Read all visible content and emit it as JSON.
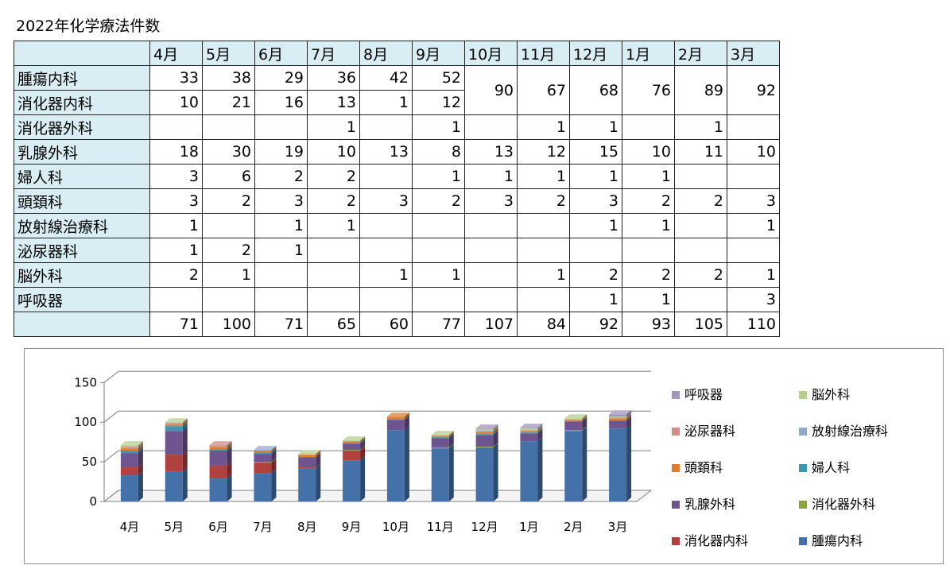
{
  "title": "2022年化学療法件数",
  "table": {
    "months": [
      "4月",
      "5月",
      "6月",
      "7月",
      "8月",
      "9月",
      "10月",
      "11月",
      "12月",
      "1月",
      "2月",
      "3月"
    ],
    "rows": [
      {
        "name": "腫瘍内科",
        "values": [
          "33",
          "38",
          "29",
          "36",
          "42",
          "52",
          "",
          "",
          "",
          "",
          "",
          ""
        ]
      },
      {
        "name": "消化器内科",
        "values": [
          "10",
          "21",
          "16",
          "13",
          "1",
          "12",
          "",
          "",
          "",
          "",
          "",
          ""
        ]
      },
      {
        "name": "消化器外科",
        "values": [
          "",
          "",
          "",
          "1",
          "",
          "1",
          "",
          "1",
          "1",
          "",
          "1",
          ""
        ]
      },
      {
        "name": "乳腺外科",
        "values": [
          "18",
          "30",
          "19",
          "10",
          "13",
          "8",
          "13",
          "12",
          "15",
          "10",
          "11",
          "10"
        ]
      },
      {
        "name": "婦人科",
        "values": [
          "3",
          "6",
          "2",
          "2",
          "",
          "1",
          "1",
          "1",
          "1",
          "1",
          "",
          ""
        ]
      },
      {
        "name": "頭頚科",
        "values": [
          "3",
          "2",
          "3",
          "2",
          "3",
          "2",
          "3",
          "2",
          "3",
          "2",
          "2",
          "3"
        ]
      },
      {
        "name": "放射線治療科",
        "values": [
          "1",
          "",
          "1",
          "1",
          "",
          "",
          "",
          "",
          "1",
          "1",
          "",
          "1"
        ]
      },
      {
        "name": "泌尿器科",
        "values": [
          "1",
          "2",
          "1",
          "",
          "",
          "",
          "",
          "",
          "",
          "",
          "",
          ""
        ]
      },
      {
        "name": "脳外科",
        "values": [
          "2",
          "1",
          "",
          "",
          "1",
          "1",
          "",
          "1",
          "2",
          "2",
          "2",
          "1"
        ]
      },
      {
        "name": "呼吸器",
        "values": [
          "",
          "",
          "",
          "",
          "",
          "",
          "",
          "",
          "1",
          "1",
          "",
          "3"
        ]
      }
    ],
    "merged": [
      "90",
      "67",
      "68",
      "76",
      "89",
      "92"
    ],
    "totals": [
      "71",
      "100",
      "71",
      "65",
      "60",
      "77",
      "107",
      "84",
      "92",
      "93",
      "105",
      "110"
    ]
  },
  "chart_data": {
    "type": "bar",
    "stacked": true,
    "categories": [
      "4月",
      "5月",
      "6月",
      "7月",
      "8月",
      "9月",
      "10月",
      "11月",
      "12月",
      "1月",
      "2月",
      "3月"
    ],
    "ylim": [
      0,
      150
    ],
    "yticks": [
      0,
      50,
      100,
      150
    ],
    "legend_position": "right",
    "series": [
      {
        "name": "腫瘍内科",
        "color": "#4472a8",
        "values": [
          33,
          38,
          29,
          36,
          42,
          52,
          90,
          67,
          68,
          76,
          89,
          92
        ]
      },
      {
        "name": "消化器内科",
        "color": "#b0413e",
        "values": [
          10,
          21,
          16,
          13,
          1,
          12,
          0,
          0,
          0,
          0,
          0,
          0
        ]
      },
      {
        "name": "消化器外科",
        "color": "#87a43e",
        "values": [
          0,
          0,
          0,
          1,
          0,
          1,
          0,
          1,
          1,
          0,
          1,
          0
        ]
      },
      {
        "name": "乳腺外科",
        "color": "#6f558f",
        "values": [
          18,
          30,
          19,
          10,
          13,
          8,
          13,
          12,
          15,
          10,
          11,
          10
        ]
      },
      {
        "name": "婦人科",
        "color": "#3a98b0",
        "values": [
          3,
          6,
          2,
          2,
          0,
          1,
          1,
          1,
          1,
          1,
          0,
          0
        ]
      },
      {
        "name": "頭頚科",
        "color": "#e07f2f",
        "values": [
          3,
          2,
          3,
          2,
          3,
          2,
          3,
          2,
          3,
          2,
          2,
          3
        ]
      },
      {
        "name": "放射線治療科",
        "color": "#8fa8cf",
        "values": [
          1,
          0,
          1,
          1,
          0,
          0,
          0,
          0,
          1,
          1,
          0,
          1
        ]
      },
      {
        "name": "泌尿器科",
        "color": "#cf8c89",
        "values": [
          1,
          2,
          1,
          0,
          0,
          0,
          0,
          0,
          0,
          0,
          0,
          0
        ]
      },
      {
        "name": "脳外科",
        "color": "#b5cf8f",
        "values": [
          2,
          1,
          0,
          0,
          1,
          1,
          0,
          1,
          2,
          2,
          2,
          1
        ]
      },
      {
        "name": "呼吸器",
        "color": "#a493bd",
        "values": [
          0,
          0,
          0,
          0,
          0,
          0,
          0,
          0,
          1,
          1,
          0,
          3
        ]
      }
    ],
    "legend_order": [
      "呼吸器",
      "脳外科",
      "泌尿器科",
      "放射線治療科",
      "頭頚科",
      "婦人科",
      "乳腺外科",
      "消化器外科",
      "消化器内科",
      "腫瘍内科"
    ]
  }
}
